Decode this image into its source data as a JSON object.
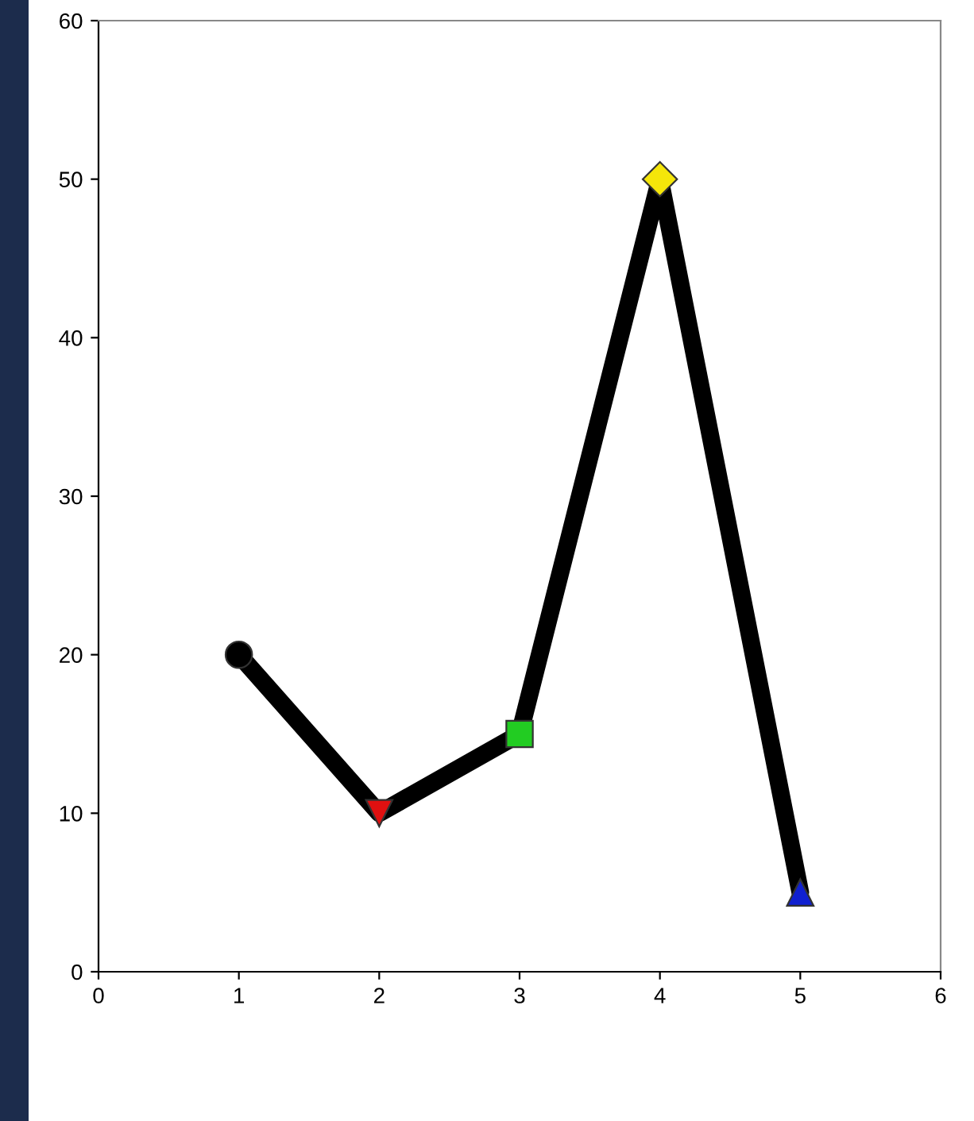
{
  "chart_data": {
    "type": "line",
    "series": [
      {
        "color": "#000000",
        "x": [
          1,
          2,
          3,
          4,
          5
        ],
        "values": [
          20,
          10,
          15,
          50,
          5
        ],
        "marker": "none"
      },
      {
        "type": "scatter",
        "color": "#000000",
        "x": [
          1
        ],
        "values": [
          20
        ],
        "marker": "circle"
      },
      {
        "type": "scatter",
        "color": "#e01010",
        "x": [
          2
        ],
        "values": [
          10
        ],
        "marker": "triangle-down"
      },
      {
        "type": "scatter",
        "color": "#22cc22",
        "x": [
          3
        ],
        "values": [
          15
        ],
        "marker": "square"
      },
      {
        "type": "scatter",
        "color": "#f5e60a",
        "x": [
          4
        ],
        "values": [
          50
        ],
        "marker": "diamond"
      },
      {
        "type": "scatter",
        "color": "#1020d0",
        "x": [
          5
        ],
        "values": [
          5
        ],
        "marker": "triangle"
      }
    ],
    "xlim": [
      0,
      6
    ],
    "xticks": [
      0,
      1,
      2,
      3,
      4,
      5,
      6
    ],
    "ylim": [
      0,
      60
    ],
    "yticks": [
      0,
      10,
      20,
      30,
      40,
      50,
      60
    ],
    "grid": false
  }
}
